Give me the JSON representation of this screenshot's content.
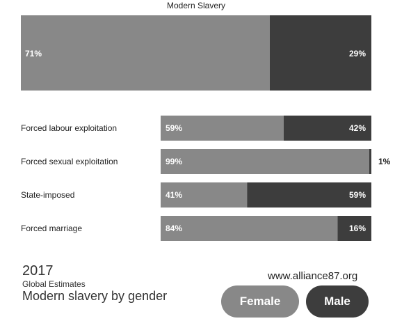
{
  "colors": {
    "female": "#888888",
    "male": "#3d3d3d",
    "text_dark": "#222222",
    "text_light": "#ffffff"
  },
  "chart_data": {
    "type": "bar",
    "orientation": "horizontal",
    "stacked": true,
    "main": {
      "title": "Modern Slavery",
      "female": 71,
      "male": 29,
      "female_label": "71%",
      "male_label": "29%"
    },
    "categories": [
      "Forced labour exploitation",
      "Forced sexual exploitation",
      "State-imposed",
      "Forced marriage"
    ],
    "series": [
      {
        "name": "Female",
        "values": [
          59,
          99,
          41,
          84
        ],
        "labels": [
          "59%",
          "99%",
          "41%",
          "84%"
        ]
      },
      {
        "name": "Male",
        "values": [
          42,
          1,
          59,
          16
        ],
        "labels": [
          "42%",
          "1%",
          "59%",
          "16%"
        ]
      }
    ],
    "legend": [
      "Female",
      "Male"
    ],
    "legend_position": "bottom-right"
  },
  "footer": {
    "year": "2017",
    "subtitle": "Global Estimates",
    "title": "Modern slavery by gender",
    "url": "www.alliance87.org"
  }
}
